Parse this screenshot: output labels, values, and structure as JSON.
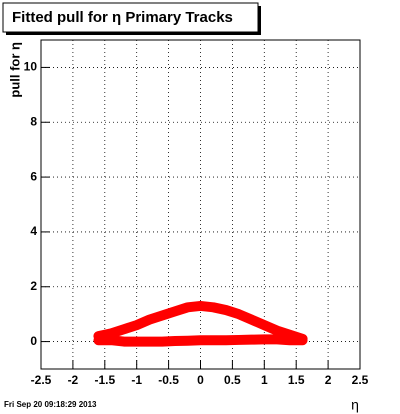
{
  "chart_data": {
    "type": "line",
    "title": "Fitted pull for  η  Primary Tracks",
    "x_label": "η",
    "y_label": "pull for η",
    "annotation": "Fri Sep 20 09:18:29 2013",
    "x": [
      -1.6,
      -1.4,
      -1.2,
      -1.0,
      -0.8,
      -0.6,
      -0.4,
      -0.2,
      0.0,
      0.2,
      0.4,
      0.6,
      0.8,
      1.0,
      1.2,
      1.4,
      1.6
    ],
    "series": [
      {
        "color": "#ff0000",
        "values": [
          0.2,
          0.3,
          0.45,
          0.6,
          0.8,
          0.95,
          1.1,
          1.25,
          1.3,
          1.25,
          1.15,
          1.0,
          0.8,
          0.6,
          0.4,
          0.25,
          0.1
        ]
      },
      {
        "color": "#ff0000",
        "values": [
          0.05,
          0.05,
          0.0,
          0.0,
          0.0,
          0.0,
          0.02,
          0.03,
          0.05,
          0.05,
          0.05,
          0.06,
          0.07,
          0.08,
          0.08,
          0.05,
          0.05
        ]
      }
    ],
    "xlim": [
      -2.5,
      2.5
    ],
    "ylim": [
      -1,
      11
    ],
    "xticks": [
      -2.5,
      -2,
      -1.5,
      -1,
      -0.5,
      0,
      0.5,
      1,
      1.5,
      2,
      2.5
    ],
    "yticks": [
      0,
      2,
      4,
      6,
      8,
      10
    ],
    "grid": true
  }
}
